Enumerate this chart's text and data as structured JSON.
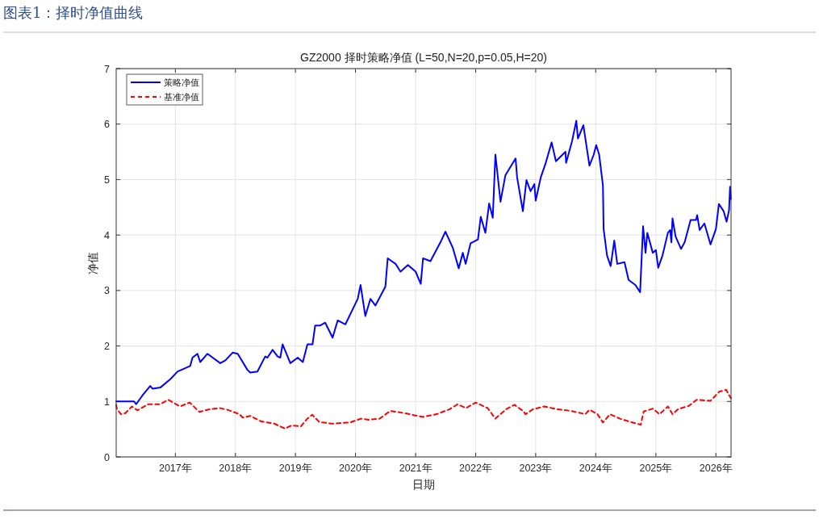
{
  "chart_data": {
    "type": "line",
    "title": "图表1：择时净值曲线",
    "subtitle": "GZ2000 择时策略净值 (L=50,N=20,p=0.05,H=20)",
    "xlabel": "日期",
    "ylabel": "净值",
    "xlim": [
      "2016-01-07",
      "2026-04-03"
    ],
    "xticks": [
      {
        "value": "2017-01-01",
        "label": "2017年"
      },
      {
        "value": "2018-01-01",
        "label": "2018年"
      },
      {
        "value": "2019-01-01",
        "label": "2019年"
      },
      {
        "value": "2020-01-01",
        "label": "2020年"
      },
      {
        "value": "2021-01-01",
        "label": "2021年"
      },
      {
        "value": "2022-01-01",
        "label": "2022年"
      },
      {
        "value": "2023-01-01",
        "label": "2023年"
      },
      {
        "value": "2024-01-01",
        "label": "2024年"
      },
      {
        "value": "2025-01-01",
        "label": "2025年"
      },
      {
        "value": "2026-01-01",
        "label": "2026年"
      }
    ],
    "ylim": [
      0,
      7
    ],
    "yticks": [
      0,
      1,
      2,
      3,
      4,
      5,
      6,
      7
    ],
    "grid": true,
    "legend": "top left",
    "series": [
      {
        "name": "策略净值",
        "color": "#0000ff",
        "line_style": "solid",
        "x": [
          "2016-01-07",
          "2016-04-25",
          "2016-05-07",
          "2016-06-15",
          "2016-08-01",
          "2016-08-15",
          "2016-10-01",
          "2016-12-01",
          "2017-01-15",
          "2017-02-15",
          "2017-04-01",
          "2017-04-15",
          "2017-05-15",
          "2017-06-01",
          "2017-07-15",
          "2017-10-01",
          "2017-11-01",
          "2017-12-15",
          "2018-01-15",
          "2018-03-15",
          "2018-04-01",
          "2018-05-15",
          "2018-07-01",
          "2018-07-15",
          "2018-08-15",
          "2018-09-15",
          "2018-10-01",
          "2018-10-15",
          "2018-12-01",
          "2019-01-15",
          "2019-02-15",
          "2019-03-15",
          "2019-04-15",
          "2019-05-01",
          "2019-06-01",
          "2019-07-01",
          "2019-08-15",
          "2019-09-15",
          "2019-11-01",
          "2020-01-15",
          "2020-02-01",
          "2020-03-01",
          "2020-04-01",
          "2020-05-01",
          "2020-06-01",
          "2020-07-01",
          "2020-07-15",
          "2020-09-01",
          "2020-10-01",
          "2020-11-15",
          "2021-01-01",
          "2021-02-01",
          "2021-02-15",
          "2021-04-01",
          "2021-06-01",
          "2021-07-01",
          "2021-08-15",
          "2021-09-20",
          "2021-10-15",
          "2021-11-01",
          "2021-12-01",
          "2022-01-15",
          "2022-02-01",
          "2022-03-01",
          "2022-03-24",
          "2022-04-15",
          "2022-05-01",
          "2022-06-01",
          "2022-07-01",
          "2022-09-01",
          "2022-09-10",
          "2022-10-15",
          "2022-11-06",
          "2022-12-01",
          "2022-12-24",
          "2023-01-01",
          "2023-02-01",
          "2023-03-01",
          "2023-04-08",
          "2023-05-04",
          "2023-07-01",
          "2023-07-05",
          "2023-08-10",
          "2023-09-05",
          "2023-09-15",
          "2023-10-18",
          "2023-11-24",
          "2023-12-20",
          "2024-01-04",
          "2024-01-22",
          "2024-02-14",
          "2024-02-18",
          "2024-03-10",
          "2024-04-01",
          "2024-04-23",
          "2024-05-11",
          "2024-06-24",
          "2024-07-19",
          "2024-08-29",
          "2024-09-27",
          "2024-10-15",
          "2024-10-30",
          "2024-11-10",
          "2024-12-13",
          "2025-01-01",
          "2025-01-15",
          "2025-02-10",
          "2025-03-15",
          "2025-03-29",
          "2025-04-05",
          "2025-04-12",
          "2025-05-01",
          "2025-06-03",
          "2025-06-25",
          "2025-07-31",
          "2025-09-02",
          "2025-09-09",
          "2025-09-24",
          "2025-10-23",
          "2025-11-29",
          "2026-01-01",
          "2026-01-19",
          "2026-02-17",
          "2026-03-07",
          "2026-03-22",
          "2026-03-28",
          "2026-04-02"
        ],
        "values": [
          1.0,
          1.0,
          0.95,
          1.11,
          1.28,
          1.23,
          1.25,
          1.4,
          1.54,
          1.58,
          1.64,
          1.79,
          1.86,
          1.71,
          1.86,
          1.69,
          1.74,
          1.88,
          1.86,
          1.57,
          1.52,
          1.54,
          1.81,
          1.79,
          1.93,
          1.81,
          1.79,
          2.03,
          1.69,
          1.79,
          1.71,
          2.03,
          2.03,
          2.37,
          2.37,
          2.42,
          2.15,
          2.46,
          2.39,
          2.85,
          3.1,
          2.54,
          2.85,
          2.73,
          2.9,
          3.07,
          3.58,
          3.48,
          3.34,
          3.46,
          3.34,
          3.12,
          3.58,
          3.53,
          3.87,
          4.06,
          3.77,
          3.4,
          3.68,
          3.48,
          3.85,
          3.92,
          4.33,
          4.04,
          4.57,
          4.31,
          5.45,
          4.6,
          5.08,
          5.38,
          5.04,
          4.43,
          4.99,
          4.79,
          4.92,
          4.62,
          5.04,
          5.28,
          5.67,
          5.33,
          5.5,
          5.3,
          5.69,
          6.06,
          5.74,
          5.98,
          5.25,
          5.45,
          5.62,
          5.45,
          4.89,
          4.11,
          3.63,
          3.44,
          3.9,
          3.48,
          3.51,
          3.19,
          3.1,
          2.97,
          4.16,
          3.68,
          4.04,
          3.68,
          3.73,
          3.41,
          3.63,
          4.04,
          4.09,
          3.87,
          4.3,
          3.97,
          3.75,
          3.87,
          4.27,
          4.27,
          4.36,
          4.09,
          4.21,
          3.83,
          4.11,
          4.56,
          4.43,
          4.24,
          4.45,
          4.87,
          4.65
        ]
      },
      {
        "name": "基准净值",
        "color": "#ff0000",
        "line_style": "dashed",
        "x": [
          "2016-01-07",
          "2016-01-12",
          "2016-02-06",
          "2016-03-03",
          "2016-04-12",
          "2016-05-15",
          "2016-07-20",
          "2016-10-01",
          "2016-11-18",
          "2017-01-30",
          "2017-03-29",
          "2017-05-27",
          "2017-07-31",
          "2017-09-27",
          "2017-11-14",
          "2018-01-26",
          "2018-02-14",
          "2018-04-01",
          "2018-06-06",
          "2018-08-25",
          "2018-10-30",
          "2018-12-10",
          "2019-02-03",
          "2019-03-11",
          "2019-04-13",
          "2019-05-26",
          "2019-08-08",
          "2019-11-29",
          "2020-02-03",
          "2020-03-22",
          "2020-05-27",
          "2020-07-31",
          "2020-10-23",
          "2021-02-14",
          "2021-05-08",
          "2021-07-27",
          "2021-09-13",
          "2021-11-03",
          "2022-01-01",
          "2022-03-15",
          "2022-05-01",
          "2022-07-05",
          "2022-08-25",
          "2022-10-20",
          "2022-10-31",
          "2022-12-16",
          "2023-02-21",
          "2023-05-12",
          "2023-08-04",
          "2023-10-30",
          "2023-11-24",
          "2024-01-12",
          "2024-02-14",
          "2024-03-28",
          "2024-05-27",
          "2024-07-31",
          "2024-10-01",
          "2024-10-19",
          "2024-12-13",
          "2025-01-23",
          "2025-03-15",
          "2025-04-12",
          "2025-05-16",
          "2025-07-20",
          "2025-09-06",
          "2025-11-29",
          "2026-01-23",
          "2026-03-04",
          "2026-04-02"
        ],
        "values": [
          0.94,
          0.86,
          0.77,
          0.79,
          0.91,
          0.84,
          0.95,
          0.95,
          1.03,
          0.91,
          0.98,
          0.81,
          0.86,
          0.88,
          0.85,
          0.77,
          0.71,
          0.74,
          0.64,
          0.6,
          0.51,
          0.57,
          0.55,
          0.68,
          0.76,
          0.63,
          0.6,
          0.62,
          0.69,
          0.67,
          0.69,
          0.83,
          0.79,
          0.72,
          0.77,
          0.86,
          0.95,
          0.88,
          0.98,
          0.88,
          0.69,
          0.86,
          0.94,
          0.82,
          0.77,
          0.86,
          0.91,
          0.86,
          0.83,
          0.77,
          0.85,
          0.77,
          0.62,
          0.77,
          0.69,
          0.63,
          0.58,
          0.82,
          0.87,
          0.77,
          0.91,
          0.77,
          0.86,
          0.92,
          1.03,
          1.01,
          1.18,
          1.21,
          1.06
        ]
      }
    ]
  }
}
